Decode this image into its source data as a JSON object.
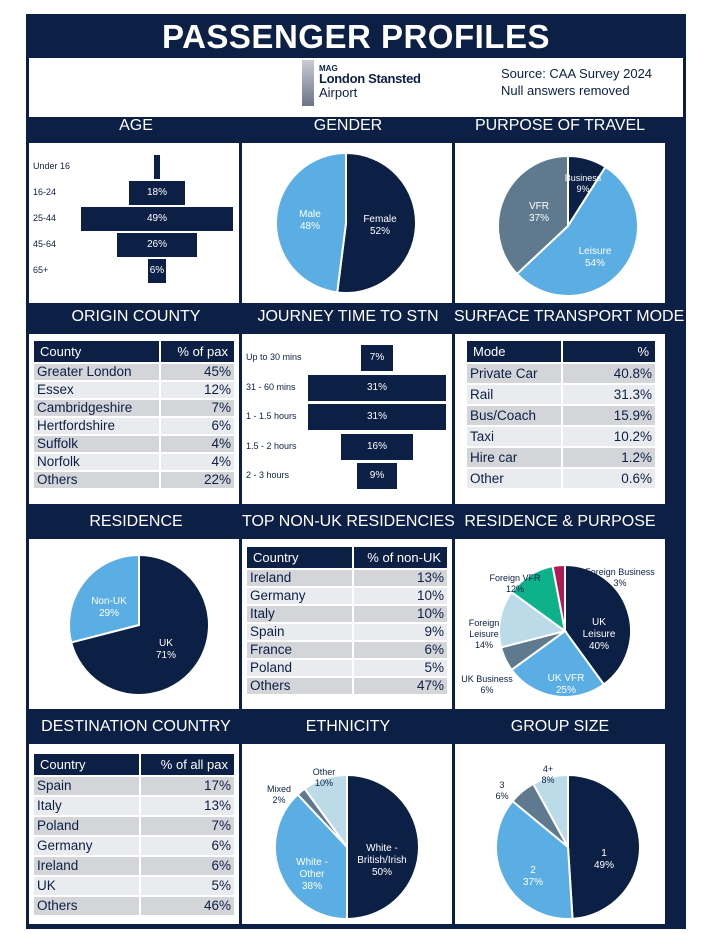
{
  "header": {
    "title": "PASSENGER PROFILES",
    "source_line1": "Source: CAA Survey 2024",
    "source_line2": "Null answers removed",
    "logo_small": "MAG",
    "logo_line1": "London Stansted",
    "logo_line2": "Airport"
  },
  "colors": {
    "navy": "#0c1f45",
    "light_blue": "#5baee3",
    "slate": "#5f7a8e",
    "pale_blue": "#bcdbe9",
    "green": "#0eb28a",
    "magenta": "#b0195a",
    "white": "#ffffff"
  },
  "chart_data": [
    {
      "id": "age",
      "type": "bar",
      "title": "AGE",
      "categories": [
        "Under 16",
        "16-24",
        "25-44",
        "45-64",
        "65+"
      ],
      "values": [
        2,
        18,
        49,
        26,
        6
      ],
      "labels": [
        "",
        "18%",
        "49%",
        "26%",
        "6%"
      ]
    },
    {
      "id": "gender",
      "type": "pie",
      "title": "GENDER",
      "labels": [
        "Female",
        "Male"
      ],
      "values": [
        52,
        48
      ],
      "value_labels": [
        "52%",
        "48%"
      ]
    },
    {
      "id": "purpose",
      "type": "pie",
      "title": "PURPOSE OF TRAVEL",
      "labels": [
        "Business",
        "Leisure",
        "VFR"
      ],
      "values": [
        9,
        54,
        37
      ],
      "value_labels": [
        "9%",
        "54%",
        "37%"
      ]
    },
    {
      "id": "origin",
      "type": "table",
      "title": "ORIGIN COUNTY",
      "columns": [
        "County",
        "% of pax"
      ],
      "rows": [
        [
          "Greater London",
          "45%"
        ],
        [
          "Essex",
          "12%"
        ],
        [
          "Cambridgeshire",
          "7%"
        ],
        [
          "Hertfordshire",
          "6%"
        ],
        [
          "Suffolk",
          "4%"
        ],
        [
          "Norfolk",
          "4%"
        ],
        [
          "Others",
          "22%"
        ]
      ]
    },
    {
      "id": "journey",
      "type": "bar",
      "title": "JOURNEY TIME TO STN",
      "categories": [
        "Up to 30 mins",
        "31 - 60 mins",
        "1 - 1.5 hours",
        "1.5 - 2 hours",
        "2 - 3 hours"
      ],
      "values": [
        7,
        31,
        31,
        16,
        9
      ],
      "labels": [
        "7%",
        "31%",
        "31%",
        "16%",
        "9%"
      ]
    },
    {
      "id": "transport",
      "type": "table",
      "title": "SURFACE TRANSPORT MODE",
      "columns": [
        "Mode",
        "%"
      ],
      "rows": [
        [
          "Private Car",
          "40.8%"
        ],
        [
          "Rail",
          "31.3%"
        ],
        [
          "Bus/Coach",
          "15.9%"
        ],
        [
          "Taxi",
          "10.2%"
        ],
        [
          "Hire car",
          "1.2%"
        ],
        [
          "Other",
          "0.6%"
        ]
      ]
    },
    {
      "id": "residence",
      "type": "pie",
      "title": "RESIDENCE",
      "labels": [
        "UK",
        "Non-UK"
      ],
      "values": [
        71,
        29
      ],
      "value_labels": [
        "71%",
        "29%"
      ]
    },
    {
      "id": "nonuk",
      "type": "table",
      "title": "TOP NON-UK RESIDENCIES",
      "columns": [
        "Country",
        "% of non-UK"
      ],
      "rows": [
        [
          "Ireland",
          "13%"
        ],
        [
          "Germany",
          "10%"
        ],
        [
          "Italy",
          "10%"
        ],
        [
          "Spain",
          "9%"
        ],
        [
          "France",
          "6%"
        ],
        [
          "Poland",
          "5%"
        ],
        [
          "Others",
          "47%"
        ]
      ]
    },
    {
      "id": "respurpose",
      "type": "pie",
      "title": "RESIDENCE & PURPOSE",
      "labels": [
        "UK Leisure",
        "UK VFR",
        "UK Business",
        "Foreign Leisure",
        "Foreign VFR",
        "Foreign Business"
      ],
      "values": [
        40,
        25,
        6,
        14,
        12,
        3
      ],
      "value_labels": [
        "40%",
        "25%",
        "6%",
        "14%",
        "12%",
        "3%"
      ]
    },
    {
      "id": "destination",
      "type": "table",
      "title": "DESTINATION COUNTRY",
      "columns": [
        "Country",
        "% of all pax"
      ],
      "rows": [
        [
          "Spain",
          "17%"
        ],
        [
          "Italy",
          "13%"
        ],
        [
          "Poland",
          "7%"
        ],
        [
          "Germany",
          "6%"
        ],
        [
          "Ireland",
          "6%"
        ],
        [
          "UK",
          "5%"
        ],
        [
          "Others",
          "46%"
        ]
      ]
    },
    {
      "id": "ethnicity",
      "type": "pie",
      "title": "ETHNICITY",
      "labels": [
        "White - British/Irish",
        "White - Other",
        "Mixed",
        "Other"
      ],
      "values": [
        50,
        38,
        2,
        10
      ],
      "value_labels": [
        "50%",
        "38%",
        "2%",
        "10%"
      ]
    },
    {
      "id": "group",
      "type": "pie",
      "title": "GROUP SIZE",
      "labels": [
        "1",
        "2",
        "3",
        "4+"
      ],
      "values": [
        49,
        37,
        6,
        8
      ],
      "value_labels": [
        "49%",
        "37%",
        "6%",
        "8%"
      ]
    }
  ]
}
